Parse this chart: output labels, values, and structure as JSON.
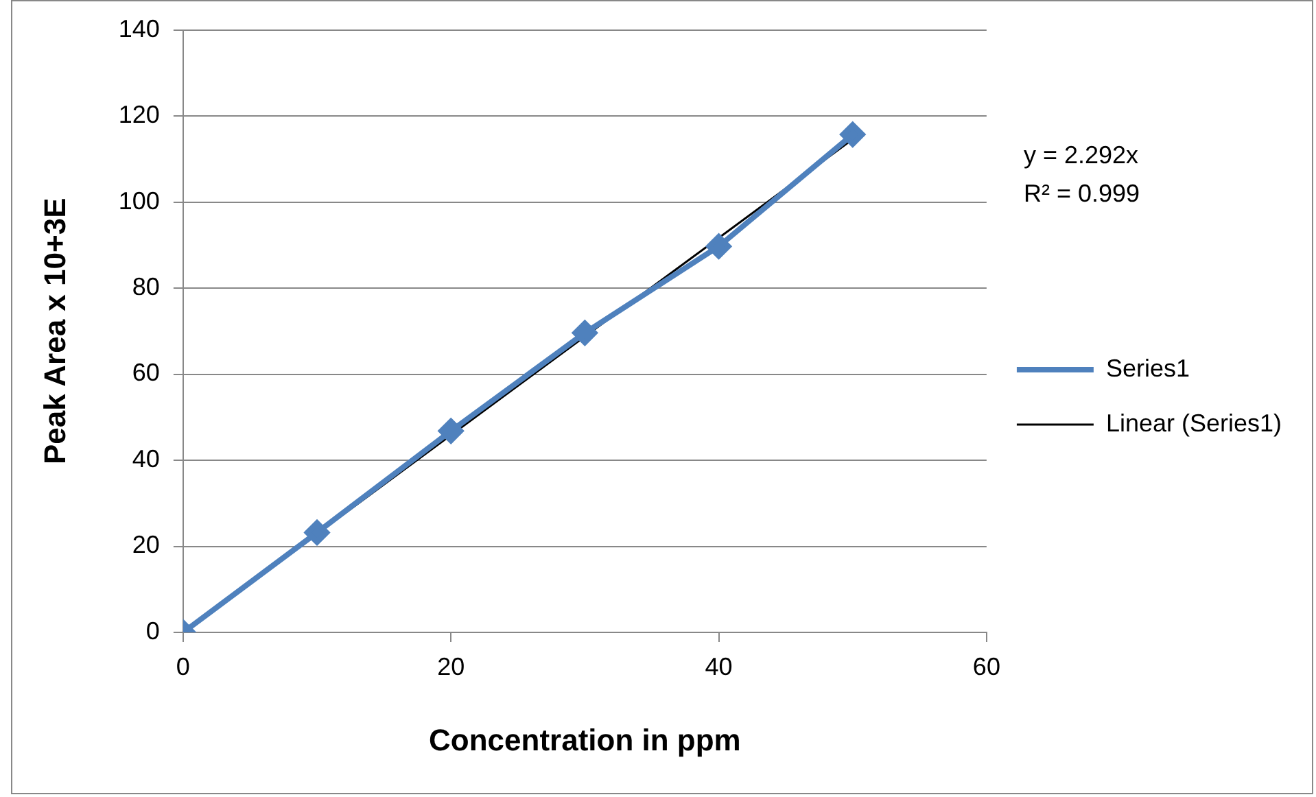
{
  "chart_data": {
    "type": "line",
    "xlabel": "Concentration in ppm",
    "ylabel": "Peak Area x 10+3E",
    "xlim": [
      0,
      60
    ],
    "xticks": [
      0,
      20,
      40,
      60
    ],
    "ylim": [
      0,
      140
    ],
    "yticks": [
      0,
      20,
      40,
      60,
      80,
      100,
      120,
      140
    ],
    "grid": "y",
    "legend": "right",
    "annotations": [
      "y = 2.292x",
      "R² = 0.999"
    ],
    "series": [
      {
        "name": "Series1",
        "color": "#4f81bd",
        "marker": "diamond",
        "x": [
          0,
          10,
          20,
          30,
          40,
          50
        ],
        "values": [
          0,
          23.2,
          46.8,
          69.6,
          89.7,
          115.7
        ]
      },
      {
        "name": "Linear (Series1)",
        "color": "#000000",
        "marker": "none",
        "x": [
          0,
          50
        ],
        "values": [
          0,
          114.6
        ]
      }
    ]
  }
}
